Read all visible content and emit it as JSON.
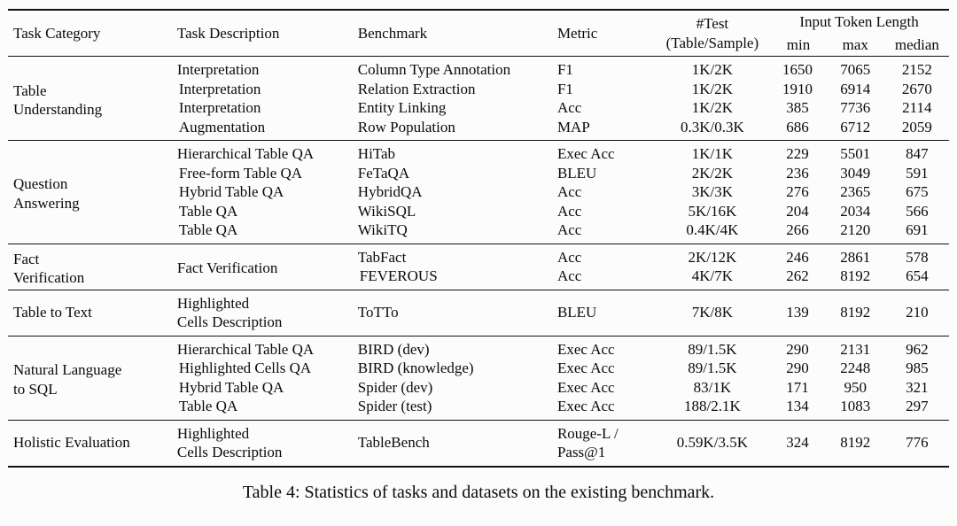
{
  "caption": "Table 4: Statistics of tasks and datasets on the existing benchmark.",
  "header": {
    "task_category": "Task Category",
    "task_description": "Task Description",
    "benchmark": "Benchmark",
    "metric": "Metric",
    "test_count": "#Test\n(Table/Sample)",
    "input_token_length": "Input Token Length",
    "min": "min",
    "max": "max",
    "median": "median"
  },
  "sections": [
    {
      "category": "Table\nUnderstanding",
      "rows": [
        {
          "description": "Interpretation",
          "benchmark": "Column Type Annotation",
          "metric": "F1",
          "test": "1K/2K",
          "min": "1650",
          "max": "7065",
          "median": "2152"
        },
        {
          "description": "Interpretation",
          "benchmark": "Relation Extraction",
          "metric": "F1",
          "test": "1K/2K",
          "min": "1910",
          "max": "6914",
          "median": "2670"
        },
        {
          "description": "Interpretation",
          "benchmark": "Entity Linking",
          "metric": "Acc",
          "test": "1K/2K",
          "min": "385",
          "max": "7736",
          "median": "2114"
        },
        {
          "description": "Augmentation",
          "benchmark": "Row Population",
          "metric": "MAP",
          "test": "0.3K/0.3K",
          "min": "686",
          "max": "6712",
          "median": "2059"
        }
      ]
    },
    {
      "category": "Question\nAnswering",
      "rows": [
        {
          "description": "Hierarchical Table QA",
          "benchmark": "HiTab",
          "metric": "Exec Acc",
          "test": "1K/1K",
          "min": "229",
          "max": "5501",
          "median": "847"
        },
        {
          "description": "Free-form Table QA",
          "benchmark": "FeTaQA",
          "metric": "BLEU",
          "test": "2K/2K",
          "min": "236",
          "max": "3049",
          "median": "591"
        },
        {
          "description": "Hybrid Table QA",
          "benchmark": "HybridQA",
          "metric": "Acc",
          "test": "3K/3K",
          "min": "276",
          "max": "2365",
          "median": "675"
        },
        {
          "description": "Table QA",
          "benchmark": "WikiSQL",
          "metric": "Acc",
          "test": "5K/16K",
          "min": "204",
          "max": "2034",
          "median": "566"
        },
        {
          "description": "Table QA",
          "benchmark": "WikiTQ",
          "metric": "Acc",
          "test": "0.4K/4K",
          "min": "266",
          "max": "2120",
          "median": "691"
        }
      ]
    },
    {
      "category": "Fact\nVerification",
      "shared_description": "Fact Verification",
      "rows": [
        {
          "benchmark": "TabFact",
          "metric": "Acc",
          "test": "2K/12K",
          "min": "246",
          "max": "2861",
          "median": "578"
        },
        {
          "benchmark": "FEVEROUS",
          "metric": "Acc",
          "test": "4K/7K",
          "min": "262",
          "max": "8192",
          "median": "654"
        }
      ]
    },
    {
      "category": "Table to Text",
      "rows": [
        {
          "description": "Highlighted\nCells Description",
          "benchmark": "ToTTo",
          "metric": "BLEU",
          "test": "7K/8K",
          "min": "139",
          "max": "8192",
          "median": "210"
        }
      ]
    },
    {
      "category": "Natural Language\nto SQL",
      "rows": [
        {
          "description": "Hierarchical Table QA",
          "benchmark": "BIRD (dev)",
          "metric": "Exec Acc",
          "test": "89/1.5K",
          "min": "290",
          "max": "2131",
          "median": "962"
        },
        {
          "description": "Highlighted Cells QA",
          "benchmark": "BIRD (knowledge)",
          "metric": "Exec Acc",
          "test": "89/1.5K",
          "min": "290",
          "max": "2248",
          "median": "985"
        },
        {
          "description": "Hybrid Table QA",
          "benchmark": "Spider (dev)",
          "metric": "Exec Acc",
          "test": "83/1K",
          "min": "171",
          "max": "950",
          "median": "321"
        },
        {
          "description": "Table QA",
          "benchmark": "Spider (test)",
          "metric": "Exec Acc",
          "test": "188/2.1K",
          "min": "134",
          "max": "1083",
          "median": "297"
        }
      ]
    },
    {
      "category": "Holistic Evaluation",
      "rows": [
        {
          "description": "Highlighted\nCells Description",
          "benchmark": "TableBench",
          "metric": "Rouge-L /\nPass@1",
          "test": "0.59K/3.5K",
          "min": "324",
          "max": "8192",
          "median": "776"
        }
      ]
    }
  ]
}
